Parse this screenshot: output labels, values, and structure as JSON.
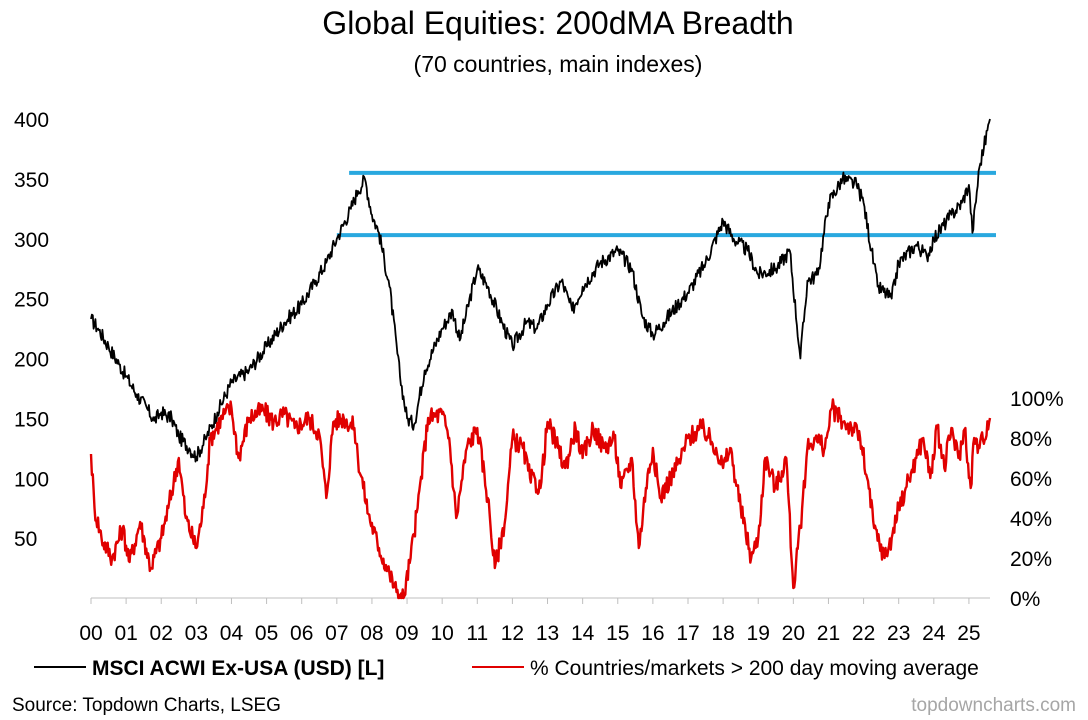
{
  "chart_data": {
    "type": "line",
    "title": "Global Equities: 200dMA Breadth",
    "subtitle": "(70 countries, main indexes)",
    "x_ticks": [
      "00",
      "01",
      "02",
      "03",
      "04",
      "05",
      "06",
      "07",
      "08",
      "09",
      "10",
      "11",
      "12",
      "13",
      "14",
      "15",
      "16",
      "17",
      "18",
      "19",
      "20",
      "21",
      "22",
      "23",
      "24",
      "25"
    ],
    "x_range": [
      2000.0,
      2025.6
    ],
    "y_left": {
      "range": [
        0,
        400
      ],
      "ticks": [
        "50",
        "100",
        "150",
        "200",
        "250",
        "300",
        "350",
        "400"
      ],
      "tick_values": [
        50,
        100,
        150,
        200,
        250,
        300,
        350,
        400
      ]
    },
    "y_right": {
      "range": [
        0,
        100
      ],
      "ticks": [
        "0%",
        "20%",
        "40%",
        "60%",
        "80%",
        "100%"
      ],
      "tick_values": [
        0,
        20,
        40,
        60,
        80,
        100
      ]
    },
    "grid": false,
    "legend_position": "bottom",
    "series": [
      {
        "name": "MSCI ACWI Ex-USA (USD) [L]",
        "color": "#000000",
        "axis": "left",
        "x": [
          2000.0,
          2000.2,
          2000.5,
          2000.8,
          2001.0,
          2001.3,
          2001.6,
          2001.8,
          2002.0,
          2002.3,
          2002.5,
          2002.8,
          2003.0,
          2003.3,
          2003.6,
          2004.0,
          2004.5,
          2005.0,
          2005.5,
          2006.0,
          2006.4,
          2006.7,
          2007.0,
          2007.4,
          2007.6,
          2007.8,
          2008.0,
          2008.2,
          2008.5,
          2008.8,
          2009.0,
          2009.2,
          2009.5,
          2010.0,
          2010.3,
          2010.5,
          2011.0,
          2011.3,
          2011.7,
          2012.0,
          2012.4,
          2012.7,
          2013.0,
          2013.4,
          2013.7,
          2014.0,
          2014.5,
          2015.0,
          2015.4,
          2015.7,
          2016.0,
          2016.3,
          2016.7,
          2017.0,
          2017.5,
          2018.0,
          2018.3,
          2018.7,
          2019.0,
          2019.5,
          2019.9,
          2020.2,
          2020.4,
          2020.7,
          2021.0,
          2021.4,
          2021.8,
          2022.0,
          2022.4,
          2022.8,
          2023.0,
          2023.5,
          2023.8,
          2024.0,
          2024.5,
          2024.8,
          2025.0,
          2025.1,
          2025.3,
          2025.6
        ],
        "values": [
          233,
          225,
          210,
          195,
          185,
          170,
          158,
          148,
          155,
          150,
          135,
          125,
          118,
          135,
          155,
          180,
          190,
          210,
          230,
          245,
          265,
          280,
          300,
          325,
          340,
          350,
          320,
          305,
          260,
          185,
          150,
          145,
          190,
          225,
          240,
          215,
          275,
          260,
          230,
          210,
          230,
          225,
          245,
          265,
          240,
          260,
          280,
          290,
          275,
          235,
          220,
          230,
          245,
          255,
          280,
          315,
          300,
          290,
          270,
          275,
          290,
          200,
          265,
          270,
          330,
          350,
          345,
          330,
          260,
          250,
          280,
          295,
          285,
          300,
          320,
          330,
          345,
          305,
          360,
          400
        ]
      },
      {
        "name": "% Countries/markets > 200 day moving average",
        "color": "#e00000",
        "axis": "right",
        "x": [
          2000.0,
          2000.1,
          2000.3,
          2000.6,
          2000.9,
          2001.1,
          2001.4,
          2001.7,
          2002.0,
          2002.2,
          2002.5,
          2002.7,
          2003.0,
          2003.2,
          2003.4,
          2003.8,
          2004.0,
          2004.2,
          2004.5,
          2004.9,
          2005.2,
          2005.5,
          2005.8,
          2006.2,
          2006.5,
          2006.7,
          2006.9,
          2007.2,
          2007.5,
          2007.6,
          2007.9,
          2008.2,
          2008.5,
          2008.7,
          2008.9,
          2009.1,
          2009.3,
          2009.6,
          2010.0,
          2010.2,
          2010.4,
          2010.7,
          2011.0,
          2011.3,
          2011.5,
          2011.8,
          2012.0,
          2012.3,
          2012.5,
          2012.8,
          2013.0,
          2013.3,
          2013.5,
          2013.8,
          2014.0,
          2014.3,
          2014.6,
          2014.9,
          2015.1,
          2015.4,
          2015.6,
          2015.8,
          2016.0,
          2016.2,
          2016.5,
          2016.8,
          2017.0,
          2017.4,
          2017.8,
          2018.0,
          2018.2,
          2018.5,
          2018.8,
          2019.0,
          2019.2,
          2019.5,
          2019.8,
          2020.0,
          2020.2,
          2020.4,
          2020.6,
          2020.9,
          2021.1,
          2021.4,
          2021.7,
          2021.9,
          2022.1,
          2022.3,
          2022.6,
          2022.8,
          2023.0,
          2023.2,
          2023.5,
          2023.7,
          2023.9,
          2024.1,
          2024.3,
          2024.5,
          2024.7,
          2024.9,
          2025.0,
          2025.05,
          2025.15,
          2025.3,
          2025.6
        ],
        "values": [
          72,
          45,
          30,
          20,
          35,
          18,
          38,
          15,
          30,
          45,
          70,
          40,
          25,
          45,
          80,
          92,
          95,
          70,
          90,
          94,
          88,
          92,
          85,
          90,
          82,
          50,
          88,
          90,
          85,
          70,
          42,
          25,
          12,
          3,
          0,
          20,
          45,
          90,
          92,
          80,
          40,
          75,
          85,
          50,
          15,
          40,
          80,
          75,
          60,
          55,
          88,
          75,
          65,
          85,
          70,
          85,
          75,
          80,
          55,
          70,
          25,
          55,
          75,
          50,
          60,
          70,
          80,
          85,
          75,
          65,
          75,
          45,
          20,
          30,
          70,
          55,
          70,
          5,
          35,
          75,
          80,
          75,
          95,
          88,
          85,
          80,
          60,
          35,
          20,
          30,
          45,
          55,
          70,
          80,
          60,
          85,
          65,
          85,
          70,
          85,
          60,
          55,
          80,
          75,
          90
        ]
      }
    ],
    "legend": [
      {
        "label": "MSCI ACWI Ex-USA (USD) [L]",
        "color": "#000000",
        "bold": true
      },
      {
        "label": "% Countries/markets > 200 day moving average",
        "color": "#e00000",
        "bold": false
      }
    ],
    "reference_lines": [
      {
        "axis": "left",
        "value": 355,
        "x_start": 2007.35,
        "x_end": 2025.6,
        "color": "#29a8df"
      },
      {
        "axis": "left",
        "value": 303,
        "x_start": 2007.0,
        "x_end": 2025.6,
        "color": "#29a8df"
      }
    ]
  },
  "footer": {
    "source": "Source: Topdown Charts, LSEG",
    "watermark": "topdowncharts.com"
  }
}
